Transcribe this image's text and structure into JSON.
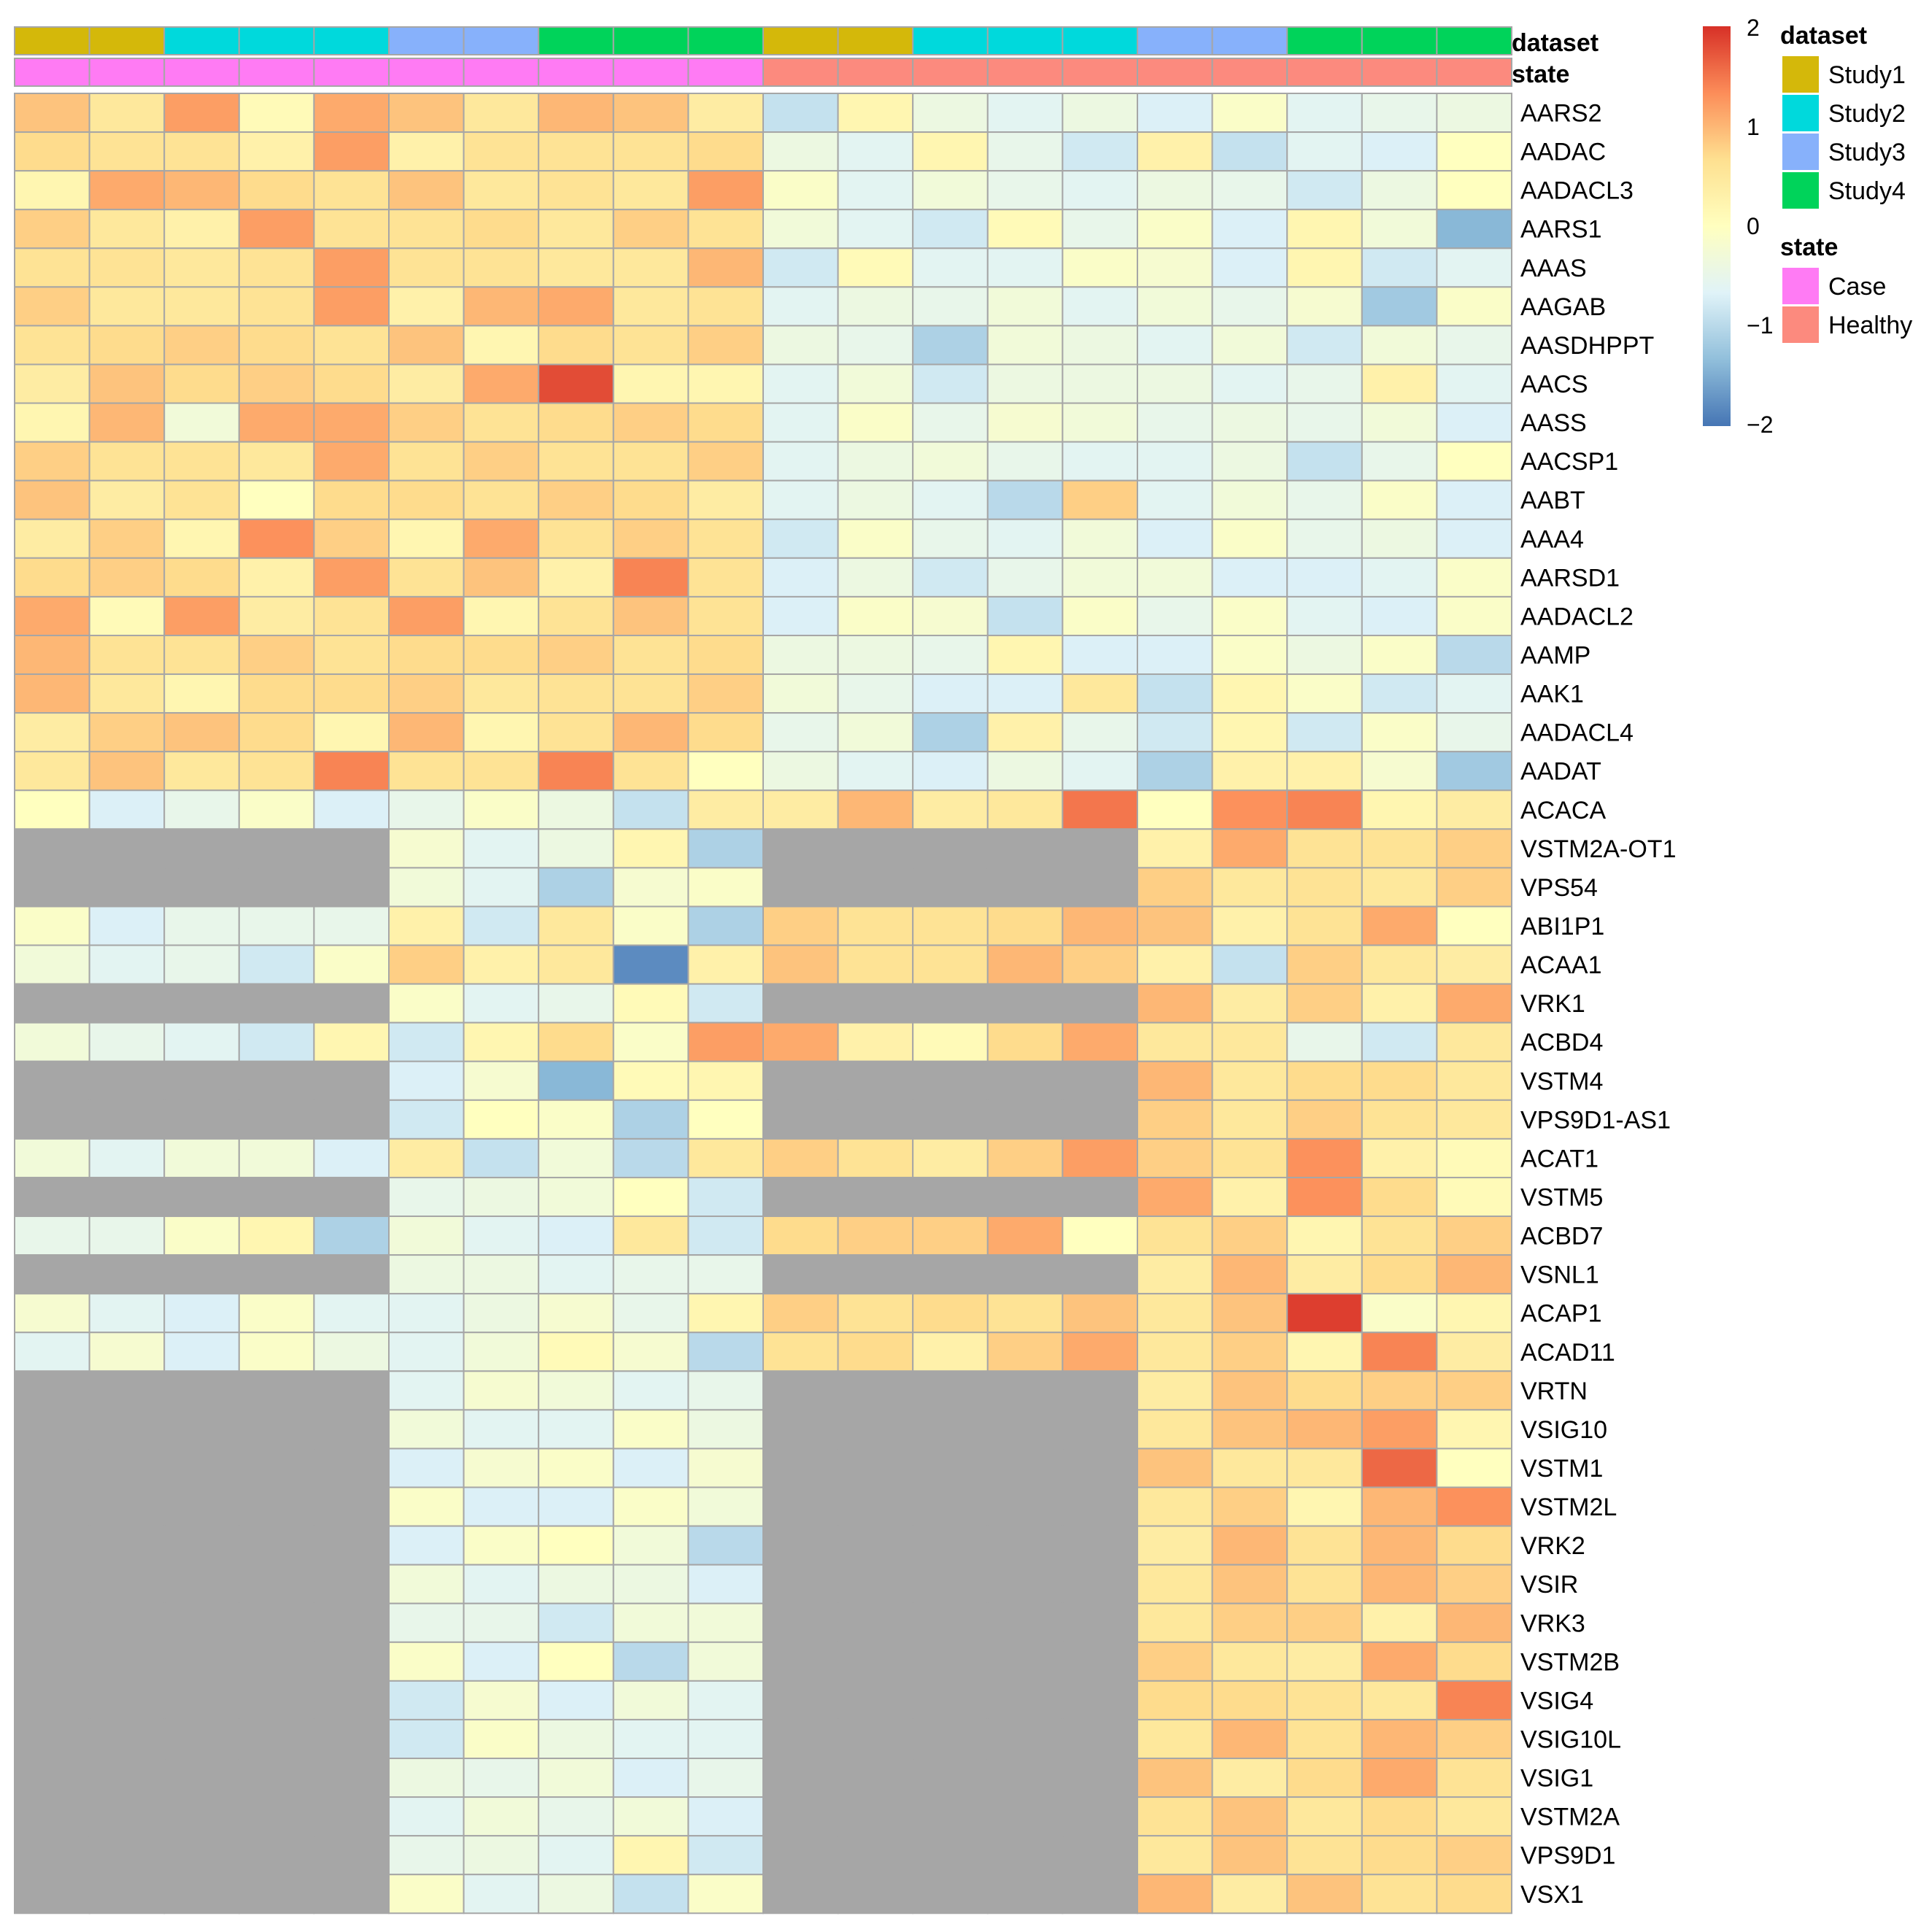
{
  "chart_data": {
    "type": "heatmap",
    "samples": 20,
    "annotations": {
      "dataset": {
        "title": "dataset",
        "values": [
          "Study1",
          "Study1",
          "Study2",
          "Study2",
          "Study2",
          "Study3",
          "Study3",
          "Study4",
          "Study4",
          "Study4",
          "Study1",
          "Study1",
          "Study2",
          "Study2",
          "Study2",
          "Study3",
          "Study3",
          "Study4",
          "Study4",
          "Study4"
        ],
        "legend": [
          {
            "label": "Study1",
            "color": "#D4B80A"
          },
          {
            "label": "Study2",
            "color": "#00D9DC"
          },
          {
            "label": "Study3",
            "color": "#87B1FB"
          },
          {
            "label": "Study4",
            "color": "#00D35A"
          }
        ]
      },
      "state": {
        "title": "state",
        "values": [
          "Case",
          "Case",
          "Case",
          "Case",
          "Case",
          "Case",
          "Case",
          "Case",
          "Case",
          "Case",
          "Healthy",
          "Healthy",
          "Healthy",
          "Healthy",
          "Healthy",
          "Healthy",
          "Healthy",
          "Healthy",
          "Healthy",
          "Healthy"
        ],
        "legend": [
          {
            "label": "Case",
            "color": "#FF7BF4"
          },
          {
            "label": "Healthy",
            "color": "#FC8A7E"
          }
        ]
      }
    },
    "color_scale": {
      "min": -2,
      "max": 2,
      "ticks": [
        "2",
        "1",
        "0",
        "−1",
        "−2"
      ],
      "stops": [
        "#4575B4",
        "#91BFDB",
        "#E0F3F8",
        "#FFFFBF",
        "#FEE090",
        "#FC8D59",
        "#D73027"
      ],
      "na_color": "#A6A6A6"
    },
    "rows": [
      {
        "gene": "AARS2",
        "values": [
          0.9,
          0.5,
          1.2,
          0.1,
          1.1,
          0.9,
          0.5,
          1.0,
          0.9,
          0.4,
          -0.9,
          0.2,
          -0.4,
          -0.6,
          -0.4,
          -0.7,
          -0.1,
          -0.6,
          -0.5,
          -0.4
        ]
      },
      {
        "gene": "AADAC",
        "values": [
          0.7,
          0.6,
          0.6,
          0.3,
          1.2,
          0.3,
          0.6,
          0.6,
          0.6,
          0.7,
          -0.4,
          -0.6,
          0.2,
          -0.5,
          -0.8,
          0.3,
          -0.9,
          -0.6,
          -0.7,
          0.0
        ]
      },
      {
        "gene": "AADACL3",
        "values": [
          0.2,
          1.1,
          1.0,
          0.7,
          0.6,
          0.9,
          0.5,
          0.6,
          0.5,
          1.2,
          -0.1,
          -0.6,
          -0.3,
          -0.5,
          -0.6,
          -0.4,
          -0.5,
          -0.8,
          -0.4,
          0.0
        ]
      },
      {
        "gene": "AARS1",
        "values": [
          0.8,
          0.5,
          0.3,
          1.2,
          0.6,
          0.6,
          0.7,
          0.5,
          0.8,
          0.6,
          -0.3,
          -0.6,
          -0.8,
          0.1,
          -0.5,
          -0.1,
          -0.7,
          0.2,
          -0.3,
          -1.4
        ]
      },
      {
        "gene": "AAAS",
        "values": [
          0.6,
          0.6,
          0.5,
          0.6,
          1.2,
          0.6,
          0.6,
          0.5,
          0.5,
          1.0,
          -0.8,
          0.1,
          -0.6,
          -0.6,
          -0.1,
          -0.2,
          -0.7,
          0.2,
          -0.8,
          -0.6
        ]
      },
      {
        "gene": "AAGAB",
        "values": [
          0.8,
          0.5,
          0.5,
          0.6,
          1.2,
          0.3,
          1.0,
          1.1,
          0.5,
          0.6,
          -0.6,
          -0.4,
          -0.5,
          -0.3,
          -0.6,
          -0.3,
          -0.5,
          -0.2,
          -1.2,
          -0.1
        ]
      },
      {
        "gene": "AASDHPPT",
        "values": [
          0.6,
          0.7,
          0.8,
          0.7,
          0.6,
          0.9,
          0.2,
          0.7,
          0.6,
          0.8,
          -0.4,
          -0.5,
          -1.1,
          -0.3,
          -0.4,
          -0.6,
          -0.3,
          -0.8,
          -0.3,
          -0.5
        ]
      },
      {
        "gene": "AACS",
        "values": [
          0.4,
          0.9,
          0.7,
          0.8,
          0.7,
          0.4,
          1.1,
          1.8,
          0.2,
          0.2,
          -0.6,
          -0.3,
          -0.8,
          -0.4,
          -0.4,
          -0.4,
          -0.6,
          -0.5,
          0.3,
          -0.6
        ]
      },
      {
        "gene": "AASS",
        "values": [
          0.2,
          1.0,
          -0.3,
          1.1,
          1.1,
          0.8,
          0.6,
          0.7,
          0.8,
          0.7,
          -0.6,
          -0.1,
          -0.5,
          -0.2,
          -0.3,
          -0.5,
          -0.4,
          -0.5,
          -0.3,
          -0.7
        ]
      },
      {
        "gene": "AACSP1",
        "values": [
          0.8,
          0.6,
          0.6,
          0.5,
          1.1,
          0.6,
          0.8,
          0.6,
          0.6,
          0.8,
          -0.6,
          -0.4,
          -0.3,
          -0.5,
          -0.6,
          -0.6,
          -0.4,
          -0.9,
          -0.5,
          0.0
        ]
      },
      {
        "gene": "AABT",
        "values": [
          0.9,
          0.4,
          0.6,
          0.0,
          0.7,
          0.7,
          0.6,
          0.8,
          0.7,
          0.4,
          -0.6,
          -0.4,
          -0.6,
          -1.0,
          0.8,
          -0.6,
          -0.3,
          -0.5,
          -0.1,
          -0.7
        ]
      },
      {
        "gene": "AAA4",
        "values": [
          0.4,
          0.8,
          0.2,
          1.3,
          0.8,
          0.2,
          1.1,
          0.6,
          0.8,
          0.6,
          -0.8,
          -0.1,
          -0.5,
          -0.6,
          -0.3,
          -0.7,
          -0.1,
          -0.5,
          -0.4,
          -0.7
        ]
      },
      {
        "gene": "AARSD1",
        "values": [
          0.7,
          0.8,
          0.7,
          0.3,
          1.2,
          0.6,
          0.9,
          0.3,
          1.4,
          0.6,
          -0.7,
          -0.4,
          -0.8,
          -0.5,
          -0.3,
          -0.3,
          -0.7,
          -0.7,
          -0.6,
          -0.1
        ]
      },
      {
        "gene": "AADACL2",
        "values": [
          1.1,
          0.1,
          1.2,
          0.4,
          0.6,
          1.2,
          0.2,
          0.6,
          0.9,
          0.6,
          -0.7,
          -0.1,
          -0.2,
          -0.9,
          -0.1,
          -0.5,
          -0.1,
          -0.6,
          -0.7,
          -0.1
        ]
      },
      {
        "gene": "AAMP",
        "values": [
          1.0,
          0.6,
          0.6,
          0.8,
          0.6,
          0.7,
          0.7,
          0.8,
          0.6,
          0.7,
          -0.4,
          -0.4,
          -0.5,
          0.2,
          -0.7,
          -0.7,
          -0.1,
          -0.4,
          -0.1,
          -1.0
        ]
      },
      {
        "gene": "AAK1",
        "values": [
          1.0,
          0.5,
          0.2,
          0.7,
          0.7,
          0.8,
          0.5,
          0.6,
          0.6,
          0.8,
          -0.3,
          -0.5,
          -0.7,
          -0.7,
          0.5,
          -0.9,
          0.2,
          -0.1,
          -0.8,
          -0.6
        ]
      },
      {
        "gene": "AADACL4",
        "values": [
          0.4,
          0.8,
          0.9,
          0.7,
          0.2,
          1.0,
          0.2,
          0.6,
          1.0,
          0.7,
          -0.5,
          -0.3,
          -1.1,
          0.3,
          -0.5,
          -0.8,
          0.2,
          -0.8,
          -0.1,
          -0.5
        ]
      },
      {
        "gene": "AADAT",
        "values": [
          0.5,
          0.9,
          0.5,
          0.6,
          1.4,
          0.6,
          0.6,
          1.4,
          0.6,
          0.0,
          -0.4,
          -0.6,
          -0.7,
          -0.4,
          -0.6,
          -1.1,
          0.3,
          0.3,
          -0.2,
          -1.2
        ]
      },
      {
        "gene": "ACACA",
        "values": [
          0.0,
          -0.7,
          -0.5,
          -0.1,
          -0.7,
          -0.5,
          -0.1,
          -0.4,
          -0.9,
          0.4,
          0.4,
          1.0,
          0.4,
          0.5,
          1.5,
          0.0,
          1.3,
          1.4,
          0.2,
          0.4
        ]
      },
      {
        "gene": "VSTM2A-OT1",
        "values": [
          null,
          null,
          null,
          null,
          null,
          -0.2,
          -0.6,
          -0.4,
          0.2,
          -1.1,
          null,
          null,
          null,
          null,
          null,
          0.3,
          1.1,
          0.6,
          0.6,
          0.8
        ]
      },
      {
        "gene": "VPS54",
        "values": [
          null,
          null,
          null,
          null,
          null,
          -0.3,
          -0.6,
          -1.1,
          -0.2,
          -0.1,
          null,
          null,
          null,
          null,
          null,
          0.8,
          0.5,
          0.6,
          0.5,
          0.8
        ]
      },
      {
        "gene": "ABI1P1",
        "values": [
          -0.1,
          -0.7,
          -0.5,
          -0.5,
          -0.5,
          0.3,
          -0.8,
          0.5,
          -0.1,
          -1.1,
          0.8,
          0.6,
          0.6,
          0.7,
          1.0,
          0.9,
          0.3,
          0.6,
          1.1,
          0.0
        ]
      },
      {
        "gene": "ACAA1",
        "values": [
          -0.3,
          -0.6,
          -0.5,
          -0.8,
          -0.1,
          0.8,
          0.3,
          0.5,
          -1.8,
          0.3,
          0.9,
          0.6,
          0.6,
          1.0,
          0.8,
          0.3,
          -0.9,
          0.8,
          0.5,
          0.4
        ]
      },
      {
        "gene": "VRK1",
        "values": [
          null,
          null,
          null,
          null,
          null,
          -0.1,
          -0.6,
          -0.5,
          0.1,
          -0.8,
          null,
          null,
          null,
          null,
          null,
          1.0,
          0.4,
          0.8,
          0.3,
          1.1
        ]
      },
      {
        "gene": "ACBD4",
        "values": [
          -0.3,
          -0.5,
          -0.6,
          -0.8,
          0.2,
          -0.8,
          0.2,
          0.7,
          -0.1,
          1.2,
          1.1,
          0.3,
          0.1,
          0.7,
          1.1,
          0.5,
          0.5,
          -0.5,
          -0.8,
          0.5
        ]
      },
      {
        "gene": "VSTM4",
        "values": [
          null,
          null,
          null,
          null,
          null,
          -0.7,
          -0.2,
          -1.4,
          0.1,
          0.2,
          null,
          null,
          null,
          null,
          null,
          1.0,
          0.5,
          0.7,
          0.7,
          0.5
        ]
      },
      {
        "gene": "VPS9D1-AS1",
        "values": [
          null,
          null,
          null,
          null,
          null,
          -0.8,
          0.0,
          -0.1,
          -1.1,
          0.0,
          null,
          null,
          null,
          null,
          null,
          0.8,
          0.5,
          0.8,
          0.6,
          0.5
        ]
      },
      {
        "gene": "ACAT1",
        "values": [
          -0.3,
          -0.6,
          -0.3,
          -0.3,
          -0.7,
          0.4,
          -0.9,
          -0.3,
          -1.0,
          0.5,
          0.8,
          0.6,
          0.4,
          0.8,
          1.2,
          0.8,
          0.6,
          1.3,
          0.3,
          0.1
        ]
      },
      {
        "gene": "VSTM5",
        "values": [
          null,
          null,
          null,
          null,
          null,
          -0.5,
          -0.4,
          -0.3,
          0.0,
          -0.8,
          null,
          null,
          null,
          null,
          null,
          1.1,
          0.3,
          1.3,
          0.7,
          0.1
        ]
      },
      {
        "gene": "ACBD7",
        "values": [
          -0.5,
          -0.5,
          -0.1,
          0.2,
          -1.1,
          -0.3,
          -0.6,
          -0.7,
          0.5,
          -0.8,
          0.7,
          0.8,
          0.8,
          1.1,
          0.0,
          0.6,
          0.8,
          0.2,
          0.6,
          0.8
        ]
      },
      {
        "gene": "VSNL1",
        "values": [
          null,
          null,
          null,
          null,
          null,
          -0.4,
          -0.4,
          -0.6,
          -0.5,
          -0.5,
          null,
          null,
          null,
          null,
          null,
          0.4,
          1.0,
          0.4,
          0.7,
          1.0
        ]
      },
      {
        "gene": "ACAP1",
        "values": [
          -0.2,
          -0.6,
          -0.7,
          -0.1,
          -0.6,
          -0.6,
          -0.4,
          -0.2,
          -0.5,
          0.2,
          0.8,
          0.6,
          0.7,
          0.6,
          0.9,
          0.5,
          0.9,
          1.9,
          -0.1,
          0.2
        ]
      },
      {
        "gene": "ACAD11",
        "values": [
          -0.6,
          -0.2,
          -0.7,
          -0.1,
          -0.4,
          -0.6,
          -0.3,
          0.1,
          -0.2,
          -1.0,
          0.6,
          0.7,
          0.3,
          0.8,
          1.1,
          0.5,
          0.8,
          0.2,
          1.4,
          0.4
        ]
      },
      {
        "gene": "VRTN",
        "values": [
          null,
          null,
          null,
          null,
          null,
          -0.6,
          -0.2,
          -0.3,
          -0.6,
          -0.5,
          null,
          null,
          null,
          null,
          null,
          0.4,
          0.9,
          0.7,
          0.8,
          0.8
        ]
      },
      {
        "gene": "VSIG10",
        "values": [
          null,
          null,
          null,
          null,
          null,
          -0.3,
          -0.6,
          -0.6,
          -0.1,
          -0.4,
          null,
          null,
          null,
          null,
          null,
          0.5,
          0.9,
          1.0,
          1.2,
          0.2
        ]
      },
      {
        "gene": "VSTM1",
        "values": [
          null,
          null,
          null,
          null,
          null,
          -0.7,
          -0.2,
          -0.1,
          -0.7,
          -0.2,
          null,
          null,
          null,
          null,
          null,
          0.9,
          0.5,
          0.5,
          1.6,
          0.0
        ]
      },
      {
        "gene": "VSTM2L",
        "values": [
          null,
          null,
          null,
          null,
          null,
          -0.1,
          -0.7,
          -0.7,
          -0.1,
          -0.3,
          null,
          null,
          null,
          null,
          null,
          0.5,
          0.8,
          0.2,
          1.0,
          1.3
        ]
      },
      {
        "gene": "VRK2",
        "values": [
          null,
          null,
          null,
          null,
          null,
          -0.7,
          -0.1,
          0.0,
          -0.3,
          -1.0,
          null,
          null,
          null,
          null,
          null,
          0.4,
          1.0,
          0.6,
          1.0,
          0.7
        ]
      },
      {
        "gene": "VSIR",
        "values": [
          null,
          null,
          null,
          null,
          null,
          -0.3,
          -0.6,
          -0.4,
          -0.4,
          -0.7,
          null,
          null,
          null,
          null,
          null,
          0.5,
          0.9,
          0.6,
          1.0,
          0.8
        ]
      },
      {
        "gene": "VRK3",
        "values": [
          null,
          null,
          null,
          null,
          null,
          -0.5,
          -0.5,
          -0.8,
          -0.3,
          -0.3,
          null,
          null,
          null,
          null,
          null,
          0.5,
          0.8,
          0.8,
          0.3,
          1.0
        ]
      },
      {
        "gene": "VSTM2B",
        "values": [
          null,
          null,
          null,
          null,
          null,
          -0.1,
          -0.7,
          0.0,
          -1.0,
          -0.3,
          null,
          null,
          null,
          null,
          null,
          0.8,
          0.5,
          0.4,
          1.1,
          0.7
        ]
      },
      {
        "gene": "VSIG4",
        "values": [
          null,
          null,
          null,
          null,
          null,
          -0.8,
          -0.2,
          -0.7,
          -0.3,
          -0.6,
          null,
          null,
          null,
          null,
          null,
          0.7,
          0.7,
          0.6,
          0.5,
          1.4
        ]
      },
      {
        "gene": "VSIG10L",
        "values": [
          null,
          null,
          null,
          null,
          null,
          -0.8,
          -0.1,
          -0.4,
          -0.6,
          -0.6,
          null,
          null,
          null,
          null,
          null,
          0.5,
          1.0,
          0.6,
          1.0,
          0.8
        ]
      },
      {
        "gene": "VSIG1",
        "values": [
          null,
          null,
          null,
          null,
          null,
          -0.4,
          -0.5,
          -0.3,
          -0.7,
          -0.5,
          null,
          null,
          null,
          null,
          null,
          0.9,
          0.4,
          0.7,
          1.1,
          0.6
        ]
      },
      {
        "gene": "VSTM2A",
        "values": [
          null,
          null,
          null,
          null,
          null,
          -0.6,
          -0.3,
          -0.5,
          -0.3,
          -0.7,
          null,
          null,
          null,
          null,
          null,
          0.6,
          0.9,
          0.5,
          0.7,
          0.5
        ]
      },
      {
        "gene": "VPS9D1",
        "values": [
          null,
          null,
          null,
          null,
          null,
          -0.5,
          -0.4,
          -0.6,
          0.2,
          -0.8,
          null,
          null,
          null,
          null,
          null,
          0.5,
          0.9,
          0.6,
          0.7,
          0.8
        ]
      },
      {
        "gene": "VSX1",
        "values": [
          null,
          null,
          null,
          null,
          null,
          -0.1,
          -0.6,
          -0.4,
          -0.9,
          -0.1,
          null,
          null,
          null,
          null,
          null,
          1.0,
          0.4,
          0.9,
          0.6,
          0.7
        ]
      }
    ]
  }
}
